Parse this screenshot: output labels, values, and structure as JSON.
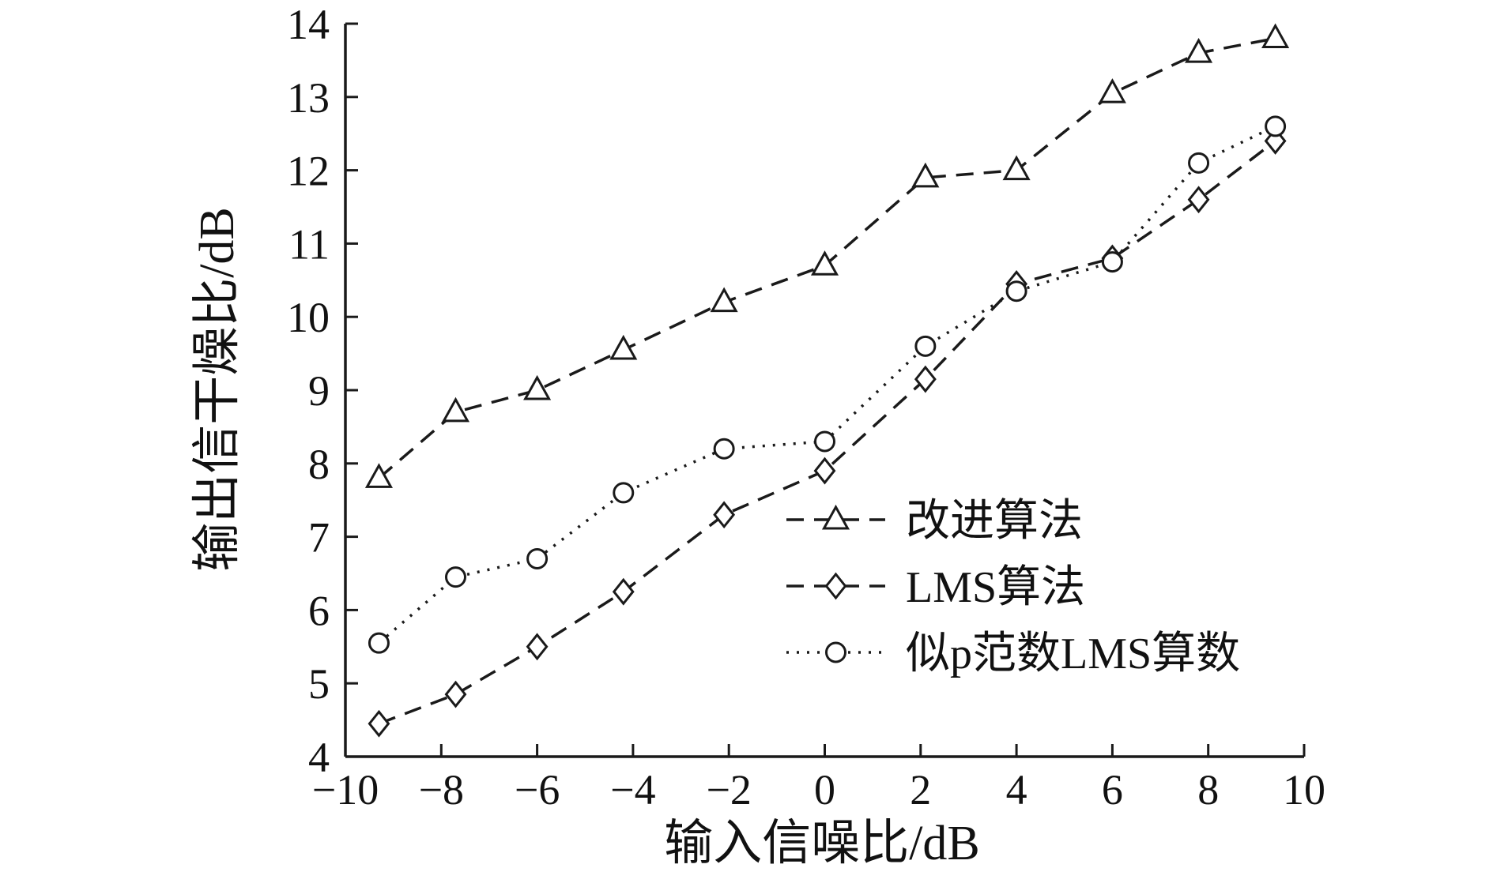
{
  "chart_data": {
    "type": "line",
    "title": "",
    "xlabel": "输入信噪比/dB",
    "ylabel": "输出信干燥比/dB",
    "xlim": [
      -10,
      10
    ],
    "ylim": [
      4,
      14
    ],
    "x_ticks": [
      -10,
      -8,
      -6,
      -4,
      -2,
      0,
      2,
      4,
      6,
      8,
      10
    ],
    "y_ticks": [
      4,
      5,
      6,
      7,
      8,
      9,
      10,
      11,
      12,
      13,
      14
    ],
    "grid": false,
    "legend_position": "inside-lower-right",
    "colors": {
      "line": "#1a1a1a",
      "marker_fill": "#ffffff",
      "background": "#ffffff"
    },
    "x": [
      -9.3,
      -7.7,
      -6.0,
      -4.2,
      -2.1,
      0.0,
      2.1,
      4.0,
      6.0,
      7.8,
      9.4
    ],
    "series": [
      {
        "name": "改进算法",
        "marker": "triangle",
        "line": "dashed",
        "values": [
          7.8,
          8.7,
          9.0,
          9.55,
          10.2,
          10.7,
          11.9,
          12.0,
          13.05,
          13.6,
          13.8
        ]
      },
      {
        "name": "LMS算法",
        "marker": "diamond",
        "line": "dashed",
        "values": [
          4.45,
          4.85,
          5.5,
          6.25,
          7.3,
          7.9,
          9.15,
          10.45,
          10.8,
          11.6,
          12.4
        ]
      },
      {
        "name": "似p范数LMS算数",
        "marker": "circle",
        "line": "dotted",
        "values": [
          5.55,
          6.45,
          6.7,
          7.6,
          8.2,
          8.3,
          9.6,
          10.35,
          10.75,
          12.1,
          12.6
        ]
      }
    ]
  }
}
